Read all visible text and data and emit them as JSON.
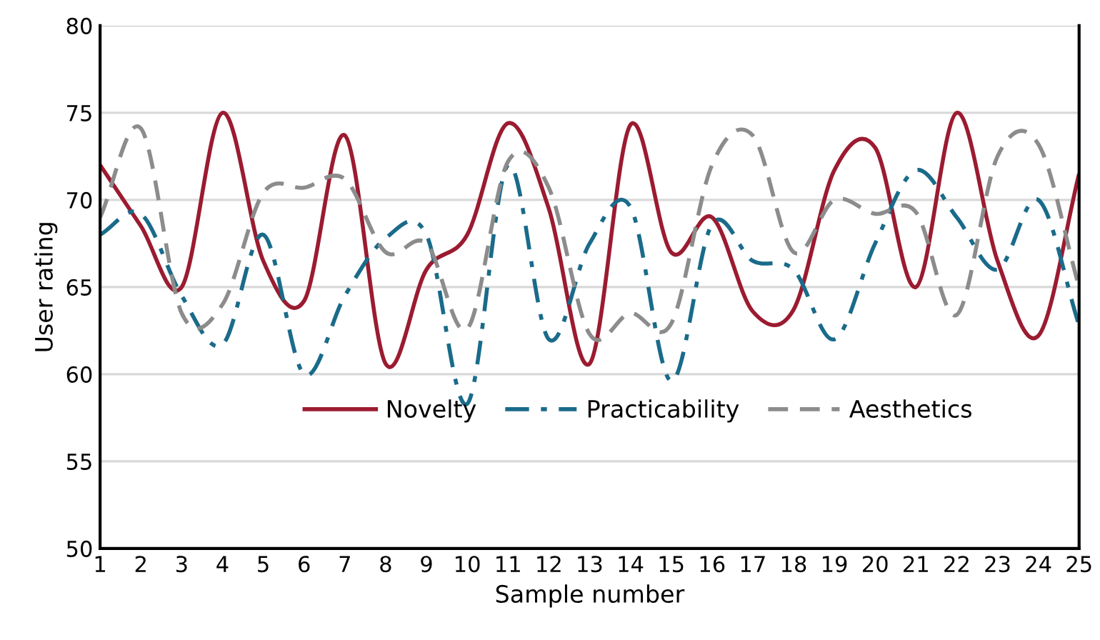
{
  "chart_data": {
    "type": "line",
    "xlabel": "Sample number",
    "ylabel": "User rating",
    "x": [
      1,
      2,
      3,
      4,
      5,
      6,
      7,
      8,
      9,
      10,
      11,
      12,
      13,
      14,
      15,
      16,
      17,
      18,
      19,
      20,
      21,
      22,
      23,
      24,
      25
    ],
    "xlim": [
      1,
      25
    ],
    "xticks": [
      1,
      2,
      3,
      4,
      5,
      6,
      7,
      8,
      9,
      10,
      11,
      12,
      13,
      14,
      15,
      16,
      17,
      18,
      19,
      20,
      21,
      22,
      23,
      24,
      25
    ],
    "ylim": [
      50,
      80
    ],
    "yticks": [
      50,
      55,
      60,
      65,
      70,
      75,
      80
    ],
    "grid": "y",
    "legend": "bottom",
    "marker": "none",
    "series": [
      {
        "name": "Novelty",
        "color": "#9b1b30",
        "line_style": "solid",
        "values": [
          72,
          68.5,
          65,
          75,
          66.5,
          64.2,
          73.7,
          60.6,
          66,
          68,
          74.4,
          69.5,
          60.6,
          74.3,
          67,
          69,
          63.6,
          63.7,
          71.7,
          73,
          65,
          75,
          66.5,
          62.2,
          71.5
        ]
      },
      {
        "name": "Practicability",
        "color": "#1a6b8a",
        "line_style": "dashdot",
        "values": [
          68,
          69.2,
          64.5,
          61.7,
          68,
          60,
          64.5,
          67.8,
          68,
          58.3,
          72,
          62,
          67.5,
          69.6,
          59.6,
          68.6,
          66.5,
          66,
          62,
          67.5,
          71.7,
          69,
          66,
          70,
          62.8
        ]
      },
      {
        "name": "Aesthetics",
        "color": "#8c8c8c",
        "line_style": "dashed",
        "values": [
          69,
          74.1,
          63.5,
          64,
          70.4,
          70.7,
          71.2,
          67,
          67.5,
          62.6,
          72.2,
          70.7,
          62.3,
          63.5,
          62.9,
          72,
          73.7,
          67,
          70,
          69.2,
          69.3,
          63.4,
          72.5,
          73.2,
          65
        ]
      }
    ]
  }
}
